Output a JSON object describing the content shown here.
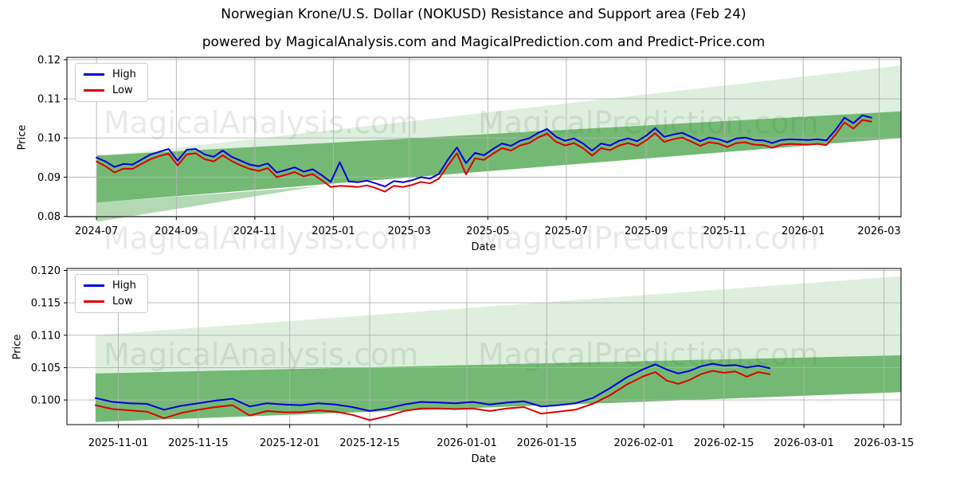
{
  "header": {
    "title": "Norwegian Krone/U.S. Dollar (NOKUSD) Resistance and Support area (Feb 24)",
    "subtitle": "powered by MagicalAnalysis.com and MagicalPrediction.com and Predict-Price.com"
  },
  "watermark": {
    "left": "MagicalAnalysis.com",
    "right": "MagicalPrediction.com"
  },
  "colors": {
    "high_line": "#0000dd",
    "low_line": "#dd0000",
    "band_dark": "rgba(0,128,0,0.55)",
    "band_light": "rgba(0,128,0,0.13)",
    "band_wedge": "rgba(0,128,0,0.30)",
    "grid": "#b3b3b3",
    "spine": "#000000"
  },
  "chart_data": [
    {
      "type": "line",
      "name": "full-history",
      "xlabel": "Date",
      "ylabel": "Price",
      "grid": true,
      "legend_position": "upper-left",
      "xlim": [
        "2024-06-08",
        "2026-03-18"
      ],
      "ylim": [
        0.0799,
        0.1206
      ],
      "xticks": [
        {
          "date": "2024-07-01",
          "label": "2024-07"
        },
        {
          "date": "2024-09-01",
          "label": "2024-09"
        },
        {
          "date": "2024-11-01",
          "label": "2024-11"
        },
        {
          "date": "2025-01-01",
          "label": "2025-01"
        },
        {
          "date": "2025-03-01",
          "label": "2025-03"
        },
        {
          "date": "2025-05-01",
          "label": "2025-05"
        },
        {
          "date": "2025-07-01",
          "label": "2025-07"
        },
        {
          "date": "2025-09-01",
          "label": "2025-09"
        },
        {
          "date": "2025-11-01",
          "label": "2025-11"
        },
        {
          "date": "2026-01-01",
          "label": "2026-01"
        },
        {
          "date": "2026-03-01",
          "label": "2026-03"
        }
      ],
      "yticks": [
        {
          "v": 0.08,
          "label": "0.08"
        },
        {
          "v": 0.09,
          "label": "0.09"
        },
        {
          "v": 0.1,
          "label": "0.10"
        },
        {
          "v": 0.11,
          "label": "0.11"
        },
        {
          "v": 0.12,
          "label": "0.12"
        }
      ],
      "bands": [
        {
          "name": "resistance-band-light",
          "color_key": "band_light",
          "points": [
            [
              "2024-07-01",
              0.0952
            ],
            [
              "2026-03-18",
              0.1185
            ],
            [
              "2026-03-18",
              0.1068
            ],
            [
              "2024-07-01",
              0.0955
            ]
          ]
        },
        {
          "name": "support-resistance-band-dark",
          "color_key": "band_dark",
          "points": [
            [
              "2024-07-01",
              0.0955
            ],
            [
              "2026-03-18",
              0.1068
            ],
            [
              "2026-03-18",
              0.1
            ],
            [
              "2024-07-01",
              0.0835
            ]
          ]
        },
        {
          "name": "support-wedge",
          "color_key": "band_wedge",
          "points": [
            [
              "2024-07-01",
              0.0835
            ],
            [
              "2024-12-20",
              0.0877
            ],
            [
              "2024-07-01",
              0.0786
            ]
          ]
        }
      ],
      "x": [
        "2024-07-01",
        "2024-07-08",
        "2024-07-15",
        "2024-07-22",
        "2024-07-29",
        "2024-08-05",
        "2024-08-12",
        "2024-08-19",
        "2024-08-26",
        "2024-09-02",
        "2024-09-09",
        "2024-09-16",
        "2024-09-23",
        "2024-09-30",
        "2024-10-07",
        "2024-10-14",
        "2024-10-21",
        "2024-10-28",
        "2024-11-04",
        "2024-11-11",
        "2024-11-18",
        "2024-11-25",
        "2024-12-02",
        "2024-12-09",
        "2024-12-16",
        "2024-12-23",
        "2024-12-30",
        "2025-01-06",
        "2025-01-13",
        "2025-01-20",
        "2025-01-27",
        "2025-02-03",
        "2025-02-10",
        "2025-02-17",
        "2025-02-24",
        "2025-03-03",
        "2025-03-10",
        "2025-03-17",
        "2025-03-24",
        "2025-03-31",
        "2025-04-07",
        "2025-04-14",
        "2025-04-21",
        "2025-04-28",
        "2025-05-05",
        "2025-05-12",
        "2025-05-19",
        "2025-05-26",
        "2025-06-02",
        "2025-06-09",
        "2025-06-16",
        "2025-06-23",
        "2025-06-30",
        "2025-07-07",
        "2025-07-14",
        "2025-07-21",
        "2025-07-28",
        "2025-08-04",
        "2025-08-11",
        "2025-08-18",
        "2025-08-25",
        "2025-09-01",
        "2025-09-08",
        "2025-09-15",
        "2025-09-22",
        "2025-09-29",
        "2025-10-06",
        "2025-10-13",
        "2025-10-20",
        "2025-10-27",
        "2025-11-03",
        "2025-11-10",
        "2025-11-17",
        "2025-11-24",
        "2025-12-01",
        "2025-12-08",
        "2025-12-15",
        "2025-12-22",
        "2025-12-29",
        "2026-01-05",
        "2026-01-12",
        "2026-01-19",
        "2026-01-26",
        "2026-02-02",
        "2026-02-09",
        "2026-02-16",
        "2026-02-23"
      ],
      "series": [
        {
          "name": "High",
          "color_key": "high_line",
          "values": [
            0.095,
            0.094,
            0.0926,
            0.0934,
            0.0932,
            0.0945,
            0.0958,
            0.0965,
            0.0972,
            0.0942,
            0.097,
            0.0972,
            0.0958,
            0.0952,
            0.0968,
            0.0952,
            0.0942,
            0.0932,
            0.0928,
            0.0935,
            0.0912,
            0.0918,
            0.0925,
            0.0914,
            0.092,
            0.0905,
            0.0888,
            0.0938,
            0.0889,
            0.0887,
            0.0891,
            0.0884,
            0.0876,
            0.089,
            0.0887,
            0.0892,
            0.09,
            0.0896,
            0.0908,
            0.0945,
            0.0976,
            0.0936,
            0.0962,
            0.0956,
            0.0972,
            0.0986,
            0.098,
            0.0993,
            0.0999,
            0.1013,
            0.1023,
            0.1003,
            0.0993,
            0.0999,
            0.0986,
            0.0968,
            0.0986,
            0.0981,
            0.0993,
            0.0999,
            0.0992,
            0.1006,
            0.1025,
            0.1003,
            0.1009,
            0.1013,
            0.1003,
            0.0992,
            0.1001,
            0.0997,
            0.0989,
            0.0999,
            0.1001,
            0.0995,
            0.0994,
            0.0987,
            0.0995,
            0.0997,
            0.0996,
            0.0995,
            0.0997,
            0.0994,
            0.102,
            0.1052,
            0.1038,
            0.1058,
            0.1052
          ]
        },
        {
          "name": "Low",
          "color_key": "low_line",
          "values": [
            0.094,
            0.0928,
            0.0912,
            0.0922,
            0.0921,
            0.0934,
            0.0946,
            0.0954,
            0.096,
            0.093,
            0.0958,
            0.0961,
            0.0946,
            0.094,
            0.0956,
            0.0941,
            0.093,
            0.0921,
            0.0916,
            0.0923,
            0.09,
            0.0906,
            0.0913,
            0.0902,
            0.0908,
            0.0892,
            0.0875,
            0.0878,
            0.0877,
            0.0875,
            0.0879,
            0.0872,
            0.0863,
            0.0878,
            0.0875,
            0.088,
            0.0888,
            0.0884,
            0.0896,
            0.093,
            0.0961,
            0.0907,
            0.0948,
            0.0944,
            0.096,
            0.0974,
            0.0968,
            0.0981,
            0.0987,
            0.1001,
            0.1011,
            0.099,
            0.0981,
            0.0987,
            0.0974,
            0.0955,
            0.0974,
            0.0969,
            0.0981,
            0.0987,
            0.098,
            0.0994,
            0.1012,
            0.099,
            0.0997,
            0.1001,
            0.0991,
            0.098,
            0.0989,
            0.0986,
            0.0977,
            0.0987,
            0.0989,
            0.0983,
            0.0982,
            0.0975,
            0.0983,
            0.0985,
            0.0984,
            0.0983,
            0.0985,
            0.0982,
            0.1008,
            0.104,
            0.1024,
            0.1046,
            0.1042
          ]
        }
      ],
      "legend": [
        "High",
        "Low"
      ]
    },
    {
      "type": "line",
      "name": "recent-zoom",
      "xlabel": "Date",
      "ylabel": "Price",
      "grid": true,
      "legend_position": "upper-left",
      "xlim": [
        "2025-10-23",
        "2026-03-18"
      ],
      "ylim": [
        0.0962,
        0.1203
      ],
      "xticks": [
        {
          "date": "2025-11-01",
          "label": "2025-11-01"
        },
        {
          "date": "2025-11-15",
          "label": "2025-11-15"
        },
        {
          "date": "2025-12-01",
          "label": "2025-12-01"
        },
        {
          "date": "2025-12-15",
          "label": "2025-12-15"
        },
        {
          "date": "2026-01-01",
          "label": "2026-01-01"
        },
        {
          "date": "2026-01-15",
          "label": "2026-01-15"
        },
        {
          "date": "2026-02-01",
          "label": "2026-02-01"
        },
        {
          "date": "2026-02-15",
          "label": "2026-02-15"
        },
        {
          "date": "2026-03-01",
          "label": "2026-03-01"
        },
        {
          "date": "2026-03-15",
          "label": "2026-03-15"
        }
      ],
      "yticks": [
        {
          "v": 0.1,
          "label": "0.100"
        },
        {
          "v": 0.105,
          "label": "0.105"
        },
        {
          "v": 0.11,
          "label": "0.110"
        },
        {
          "v": 0.115,
          "label": "0.115"
        },
        {
          "v": 0.12,
          "label": "0.120"
        }
      ],
      "bands": [
        {
          "name": "resistance-band-light",
          "color_key": "band_light",
          "points": [
            [
              "2025-10-28",
              0.11
            ],
            [
              "2026-03-18",
              0.1191
            ],
            [
              "2026-03-18",
              0.1069
            ],
            [
              "2025-10-28",
              0.1041
            ]
          ]
        },
        {
          "name": "support-resistance-band-dark",
          "color_key": "band_dark",
          "points": [
            [
              "2025-10-28",
              0.1041
            ],
            [
              "2026-03-18",
              0.1069
            ],
            [
              "2026-03-18",
              0.1012
            ],
            [
              "2025-10-28",
              0.0966
            ]
          ]
        }
      ],
      "x": [
        "2025-10-28",
        "2025-10-31",
        "2025-11-03",
        "2025-11-06",
        "2025-11-09",
        "2025-11-12",
        "2025-11-15",
        "2025-11-18",
        "2025-11-21",
        "2025-11-24",
        "2025-11-27",
        "2025-11-30",
        "2025-12-03",
        "2025-12-06",
        "2025-12-09",
        "2025-12-12",
        "2025-12-15",
        "2025-12-18",
        "2025-12-21",
        "2025-12-24",
        "2025-12-27",
        "2025-12-30",
        "2026-01-02",
        "2026-01-05",
        "2026-01-08",
        "2026-01-11",
        "2026-01-14",
        "2026-01-17",
        "2026-01-20",
        "2026-01-23",
        "2026-01-26",
        "2026-01-29",
        "2026-02-01",
        "2026-02-03",
        "2026-02-05",
        "2026-02-07",
        "2026-02-09",
        "2026-02-11",
        "2026-02-13",
        "2026-02-15",
        "2026-02-17",
        "2026-02-19",
        "2026-02-21",
        "2026-02-23"
      ],
      "series": [
        {
          "name": "High",
          "color_key": "high_line",
          "values": [
            0.1003,
            0.0997,
            0.0995,
            0.0994,
            0.0985,
            0.0991,
            0.0995,
            0.0999,
            0.1002,
            0.099,
            0.0995,
            0.0993,
            0.0992,
            0.0995,
            0.0993,
            0.0989,
            0.0983,
            0.0987,
            0.0993,
            0.0997,
            0.0996,
            0.0995,
            0.0997,
            0.0993,
            0.0996,
            0.0998,
            0.099,
            0.0992,
            0.0995,
            0.1003,
            0.1018,
            0.1035,
            0.1048,
            0.1055,
            0.1047,
            0.1041,
            0.1045,
            0.1052,
            0.1056,
            0.1053,
            0.1054,
            0.105,
            0.1053,
            0.1049
          ]
        },
        {
          "name": "Low",
          "color_key": "low_line",
          "values": [
            0.0992,
            0.0986,
            0.0984,
            0.0982,
            0.0972,
            0.098,
            0.0985,
            0.0989,
            0.0992,
            0.0976,
            0.0983,
            0.0981,
            0.0981,
            0.0984,
            0.0982,
            0.0977,
            0.0969,
            0.0975,
            0.0983,
            0.0987,
            0.0987,
            0.0986,
            0.0987,
            0.0983,
            0.0987,
            0.0989,
            0.0979,
            0.0982,
            0.0985,
            0.0994,
            0.1007,
            0.1024,
            0.1037,
            0.1043,
            0.103,
            0.1025,
            0.1031,
            0.104,
            0.1045,
            0.1042,
            0.1044,
            0.1036,
            0.1043,
            0.104
          ]
        }
      ],
      "legend": [
        "High",
        "Low"
      ]
    }
  ]
}
